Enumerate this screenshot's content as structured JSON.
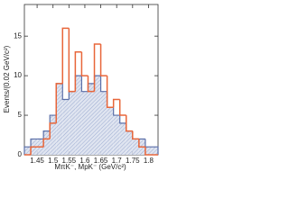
{
  "chart_data": {
    "type": "histogram",
    "x_label": "MπK⁻, MpK⁻ (GeV/c²)",
    "y_label": "Events/(0.02 GeV/c²)",
    "bins": [
      1.41,
      1.43,
      1.45,
      1.47,
      1.49,
      1.51,
      1.53,
      1.55,
      1.57,
      1.59,
      1.61,
      1.63,
      1.65,
      1.67,
      1.69,
      1.71,
      1.73,
      1.75,
      1.77,
      1.79,
      1.81,
      1.83
    ],
    "series": [
      {
        "color": "#5b6fa8",
        "fill": "hatch",
        "values": [
          1,
          2,
          2,
          3,
          5,
          9,
          7,
          8,
          10,
          8,
          9,
          10,
          8,
          6,
          5,
          4,
          3,
          2,
          2,
          1,
          1
        ]
      },
      {
        "color": "#e8663a",
        "fill": "none",
        "values": [
          0,
          1,
          1,
          2,
          4,
          9,
          16,
          8,
          13,
          10,
          8,
          14,
          10,
          6,
          7,
          5,
          3,
          2,
          1,
          0,
          0
        ]
      }
    ],
    "xlim": [
      1.41,
      1.83
    ],
    "ylim": [
      0,
      19
    ],
    "xticks": [
      1.45,
      1.5,
      1.55,
      1.6,
      1.65,
      1.7,
      1.75,
      1.8
    ],
    "yticks": [
      0,
      5,
      10,
      15
    ]
  }
}
